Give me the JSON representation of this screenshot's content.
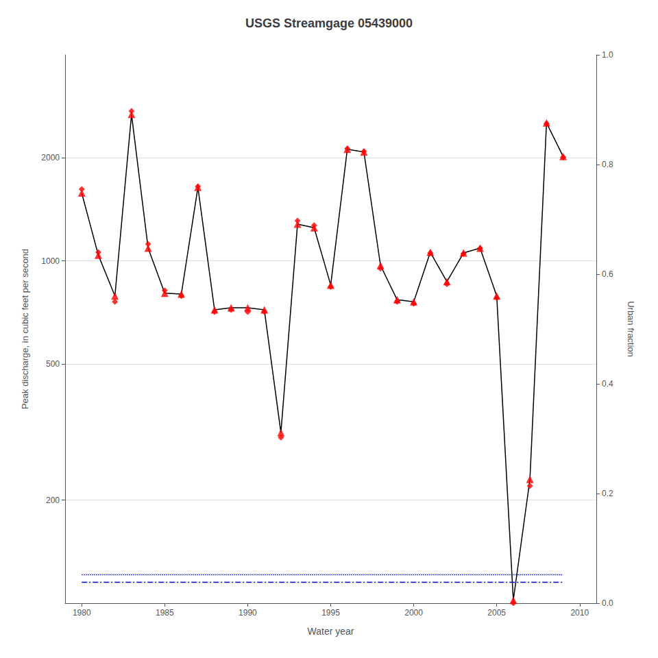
{
  "chart_data": {
    "type": "line",
    "title": "USGS Streamgage 05439000",
    "xlabel": "Water year",
    "ylabel": "Peak discharge, in cubic feet per second",
    "y2label": "Urban fraction",
    "log": "y",
    "grid": true,
    "x": [
      1980,
      1981,
      1982,
      1983,
      1984,
      1985,
      1986,
      1987,
      1988,
      1989,
      1990,
      1991,
      1992,
      1993,
      1994,
      1995,
      1996,
      1997,
      1998,
      1999,
      2000,
      2001,
      2002,
      2003,
      2004,
      2005,
      2006,
      2007,
      2008,
      2009
    ],
    "xlim": [
      1979,
      2011
    ],
    "xticks": [
      1980,
      1985,
      1990,
      1995,
      2000,
      2005,
      2010
    ],
    "ylim": [
      100,
      4000
    ],
    "yticks": [
      200,
      500,
      1000,
      2000
    ],
    "y2lim": [
      0.0,
      1.0
    ],
    "y2ticks": [
      {
        "value": 0.0,
        "label": "0.0"
      },
      0.2,
      0.4,
      0.6,
      0.8,
      {
        "value": 1.0,
        "label": "1.0"
      }
    ],
    "series": [
      {
        "type": "line",
        "axis": "y2",
        "color": "#0000cc",
        "line_style": "dotted",
        "values": [
          0.052,
          0.052,
          0.052,
          0.052,
          0.052,
          0.052,
          0.052,
          0.052,
          0.052,
          0.052,
          0.052,
          0.052,
          0.052,
          0.052,
          0.052,
          0.052,
          0.052,
          0.052,
          0.052,
          0.052,
          0.052,
          0.052,
          0.052,
          0.052,
          0.052,
          0.052,
          0.052,
          0.052,
          0.052,
          0.052
        ]
      },
      {
        "type": "line",
        "axis": "y2",
        "color": "#0000cc",
        "line_style": "dashdot",
        "values": [
          0.038,
          0.038,
          0.038,
          0.038,
          0.038,
          0.038,
          0.038,
          0.038,
          0.038,
          0.038,
          0.038,
          0.038,
          0.038,
          0.038,
          0.038,
          0.038,
          0.038,
          0.038,
          0.038,
          0.038,
          0.038,
          0.038,
          0.038,
          0.038,
          0.038,
          0.038,
          0.038,
          0.038,
          0.038,
          0.038
        ]
      },
      {
        "type": "line",
        "color": "#000000",
        "line_style": "solid",
        "values": [
          1580,
          1040,
          790,
          2680,
          1090,
          805,
          800,
          1640,
          720,
          730,
          730,
          720,
          315,
          1280,
          1250,
          850,
          2120,
          2080,
          970,
          770,
          760,
          1060,
          870,
          1055,
          1090,
          790,
          102,
          230,
          2530,
          2020
        ]
      },
      {
        "type": "scatter",
        "color": "#ff0000",
        "marker": "triangle",
        "values": [
          1580,
          1040,
          790,
          2680,
          1090,
          805,
          800,
          1640,
          720,
          730,
          730,
          720,
          315,
          1280,
          1250,
          850,
          2120,
          2080,
          970,
          770,
          760,
          1060,
          870,
          1055,
          1090,
          790,
          102,
          230,
          2530,
          2020
        ]
      },
      {
        "type": "scatter",
        "color": "#ff0000",
        "marker": "diamond",
        "values": [
          1620,
          1060,
          760,
          2740,
          1120,
          820,
          790,
          1650,
          710,
          720,
          710,
          710,
          305,
          1310,
          1270,
          840,
          2130,
          2090,
          950,
          760,
          750,
          1055,
          855,
          1050,
          1090,
          780,
          100,
          220,
          2520,
          2010
        ]
      }
    ]
  }
}
